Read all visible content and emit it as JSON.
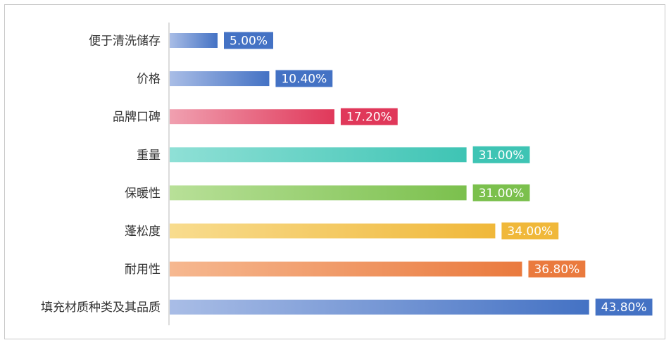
{
  "chart_data": {
    "type": "bar",
    "orientation": "horizontal",
    "categories": [
      "便于清洗储存",
      "价格",
      "品牌口碑",
      "重量",
      "保暖性",
      "蓬松度",
      "耐用性",
      "填充材质种类及其品质"
    ],
    "values": [
      5.0,
      10.4,
      17.2,
      31.0,
      31.0,
      34.0,
      36.8,
      43.8
    ],
    "value_labels": [
      "5.00%",
      "10.40%",
      "17.20%",
      "31.00%",
      "31.00%",
      "34.00%",
      "36.80%",
      "43.80%"
    ],
    "unit": "%",
    "xlim": [
      0,
      44
    ],
    "grid": false,
    "legend": "none",
    "colors": [
      "#4472c4",
      "#4472c4",
      "#e0385a",
      "#3ec4b4",
      "#7bc04d",
      "#f0b83a",
      "#ea7a3e",
      "#4472c4"
    ],
    "colors_light": [
      "#a9bde6",
      "#a9bde6",
      "#f0a0b0",
      "#8fe0d6",
      "#b8e098",
      "#f8dc8e",
      "#f6b890",
      "#a9bde6"
    ]
  }
}
